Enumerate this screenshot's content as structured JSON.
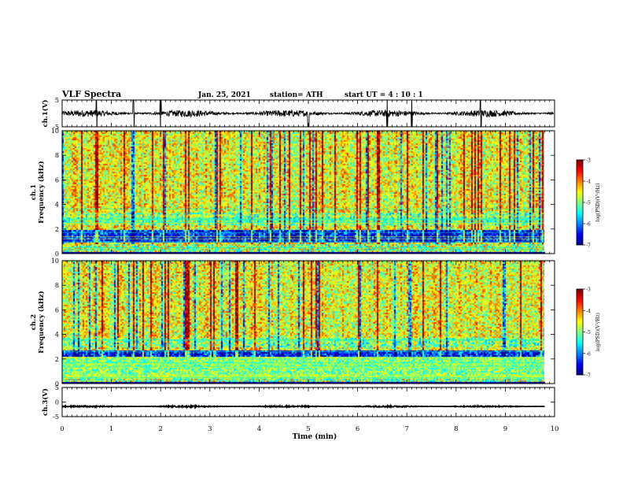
{
  "header": {
    "title": "VLF Spectra",
    "date": "Jan. 25, 2021",
    "station": "station= ATH",
    "start_ut": "start  UT =   4 : 10 : 1"
  },
  "chart_data": [
    {
      "type": "line",
      "panel": "ch1-waveform",
      "ylabel": "ch.1(V)",
      "ylim": [
        -5,
        5
      ],
      "yticks": [
        "5",
        "-5"
      ],
      "xlim": [
        0,
        10
      ],
      "baseline": 0,
      "amplitude": 1.3,
      "spikes_at": [
        0.7,
        1.45,
        2.0,
        5.0,
        6.6,
        7.1,
        8.5
      ],
      "color": "#000000"
    },
    {
      "type": "heatmap",
      "panel": "ch1-spectrogram",
      "ylabel": "ch.1\nFrequency  (kHz)",
      "ylim": [
        0,
        10
      ],
      "yticks": [
        "0",
        "2",
        "4",
        "6",
        "8",
        "10"
      ],
      "xlim": [
        0,
        9.8
      ],
      "colorbar": {
        "label": "log(PSD)(V²/Hz)",
        "range": [
          -7,
          -3
        ],
        "ticks": [
          "-3",
          "-4",
          "-5",
          "-6",
          "-7"
        ]
      },
      "low_band_khz": [
        1.0,
        2.0
      ],
      "enhanced_band_khz": [
        2.4,
        3.4
      ]
    },
    {
      "type": "heatmap",
      "panel": "ch2-spectrogram",
      "ylabel": "ch.2\nFrequency  (kHz)",
      "ylim": [
        0,
        10
      ],
      "yticks": [
        "0",
        "2",
        "4",
        "6",
        "8",
        "10"
      ],
      "xlim": [
        0,
        9.8
      ],
      "colorbar": {
        "label": "log(PSD)(V²/Hz)",
        "range": [
          -7,
          -3
        ],
        "ticks": [
          "-3",
          "-4",
          "-5",
          "-6",
          "-7"
        ]
      },
      "low_band_khz": [
        2.2,
        2.8
      ],
      "enhanced_band_khz": [
        3.0,
        3.8
      ]
    },
    {
      "type": "line",
      "panel": "ch3-waveform",
      "ylabel": "ch.3(V)",
      "ylim": [
        -5,
        5
      ],
      "yticks": [
        "5",
        "0",
        "-5"
      ],
      "xlim": [
        0,
        9.8
      ],
      "baseline": -1.5,
      "amplitude": 0.25,
      "color": "#000000"
    }
  ],
  "xaxis": {
    "label": "Time  (min)",
    "ticks": [
      "0",
      "1",
      "2",
      "3",
      "4",
      "5",
      "6",
      "7",
      "8",
      "9",
      "10"
    ],
    "range": [
      0,
      10
    ]
  }
}
